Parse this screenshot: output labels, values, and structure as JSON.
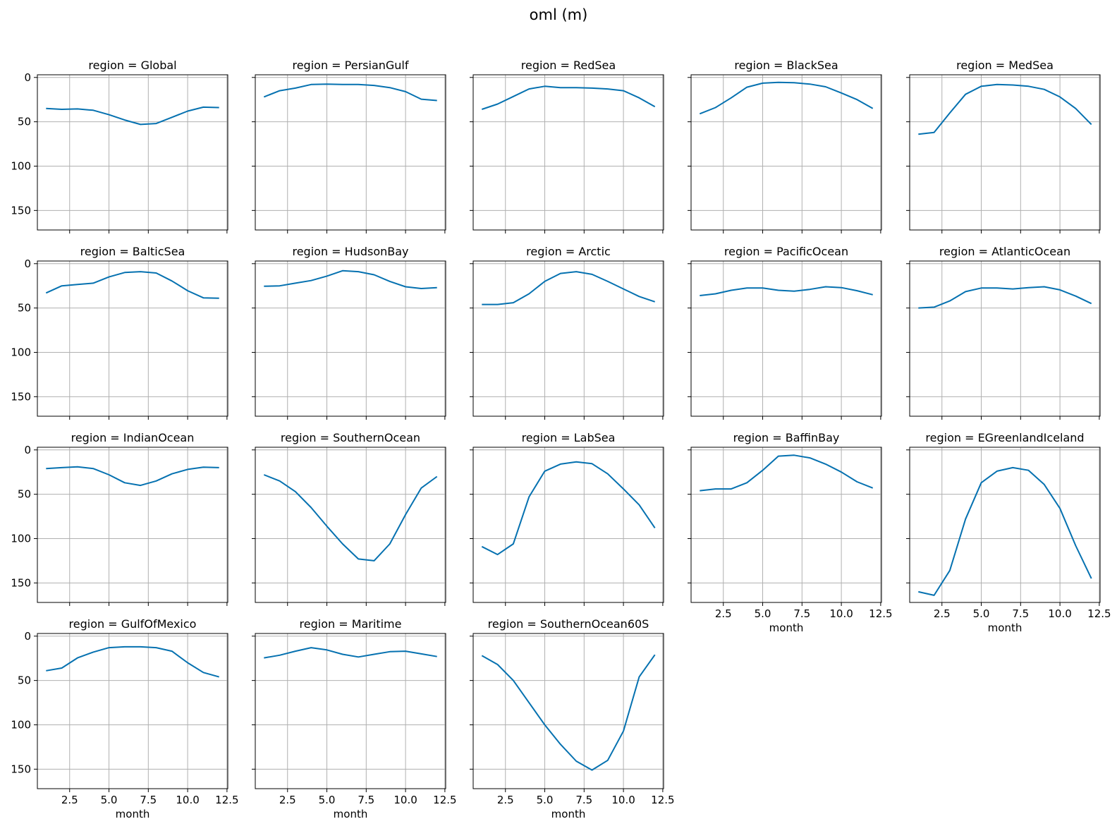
{
  "suptitle": "oml (m)",
  "colors": {
    "line": "#0571b0",
    "grid": "#b0b0b0",
    "axes": "#000000"
  },
  "chart_data": {
    "type": "line",
    "layout": "facet-grid",
    "facet_label_prefix": "region = ",
    "columns": 5,
    "shared_x": true,
    "shared_y": true,
    "y_inverted": true,
    "grid": true,
    "xlabel": "month",
    "ylabel": "",
    "xlim": [
      0.45,
      12.55
    ],
    "ylim": [
      172,
      -3
    ],
    "xticks": [
      2.5,
      5.0,
      7.5,
      10.0,
      12.5
    ],
    "xtick_labels": [
      "2.5",
      "5.0",
      "7.5",
      "10.0",
      "12.5"
    ],
    "yticks": [
      0,
      50,
      100,
      150
    ],
    "ytick_labels": [
      "0",
      "50",
      "100",
      "150"
    ],
    "x": [
      1,
      2,
      3,
      4,
      5,
      6,
      7,
      8,
      9,
      10,
      11,
      12
    ],
    "panels": [
      {
        "region": "Global",
        "values": [
          35,
          36,
          35.5,
          37,
          42,
          48,
          53,
          52,
          45,
          38,
          33.5,
          34
        ]
      },
      {
        "region": "PersianGulf",
        "values": [
          22,
          15,
          12,
          8,
          7.5,
          8,
          8,
          9,
          11.5,
          16,
          24.5,
          26
        ]
      },
      {
        "region": "RedSea",
        "values": [
          36,
          30,
          21.5,
          13,
          10,
          11.5,
          11.5,
          12,
          13,
          15,
          23,
          33
        ]
      },
      {
        "region": "BlackSea",
        "values": [
          41,
          34,
          23,
          11,
          6.5,
          5.5,
          6,
          7.5,
          10.5,
          17.5,
          25,
          35
        ]
      },
      {
        "region": "MedSea",
        "values": [
          64,
          62,
          40,
          19,
          10,
          8,
          8.5,
          10,
          13.5,
          22,
          35,
          53
        ]
      },
      {
        "region": "BalticSea",
        "values": [
          33,
          25,
          23.5,
          22,
          15,
          10,
          9,
          10.5,
          19.5,
          30.5,
          38.5,
          39
        ]
      },
      {
        "region": "HudsonBay",
        "values": [
          25.5,
          25,
          22,
          19,
          14,
          8,
          9,
          12.5,
          20,
          26,
          28,
          27
        ]
      },
      {
        "region": "Arctic",
        "values": [
          46,
          46,
          44,
          34,
          20,
          11,
          9,
          12,
          20,
          28.5,
          37,
          43
        ]
      },
      {
        "region": "PacificOcean",
        "values": [
          36,
          34,
          30,
          27.5,
          27.5,
          30,
          31,
          29,
          26,
          27,
          30.5,
          35
        ]
      },
      {
        "region": "AtlanticOcean",
        "values": [
          50,
          49,
          42,
          31.5,
          27.5,
          27.5,
          28.5,
          27,
          26,
          29.5,
          36.5,
          45
        ]
      },
      {
        "region": "IndianOcean",
        "values": [
          21,
          20,
          19,
          21,
          28,
          37,
          40,
          35,
          27,
          22,
          19.5,
          20
        ]
      },
      {
        "region": "SouthernOcean",
        "values": [
          28,
          35,
          47,
          65,
          86,
          106,
          123,
          125,
          106,
          73,
          43,
          30
        ]
      },
      {
        "region": "LabSea",
        "values": [
          109,
          118,
          106,
          53,
          24,
          16,
          13.5,
          15.5,
          27,
          44,
          62,
          88
        ]
      },
      {
        "region": "BaffinBay",
        "values": [
          46,
          44,
          44,
          37,
          23,
          7,
          6,
          9,
          16,
          25,
          36,
          43
        ]
      },
      {
        "region": "EGreenlandIceland",
        "values": [
          160,
          164,
          136,
          78,
          37,
          24,
          20,
          23,
          39,
          66,
          108,
          145
        ]
      },
      {
        "region": "GulfOfMexico",
        "values": [
          39,
          36,
          24.5,
          18,
          13,
          12,
          12,
          13,
          17,
          30,
          41,
          46
        ]
      },
      {
        "region": "Maritime",
        "values": [
          24.5,
          21.5,
          17,
          13,
          15.5,
          20.5,
          23.5,
          20.5,
          17.5,
          17,
          20,
          23
        ]
      },
      {
        "region": "SouthernOcean60S",
        "values": [
          22,
          32,
          50,
          75,
          100,
          122,
          141,
          151,
          140,
          107,
          46,
          21
        ]
      }
    ]
  }
}
